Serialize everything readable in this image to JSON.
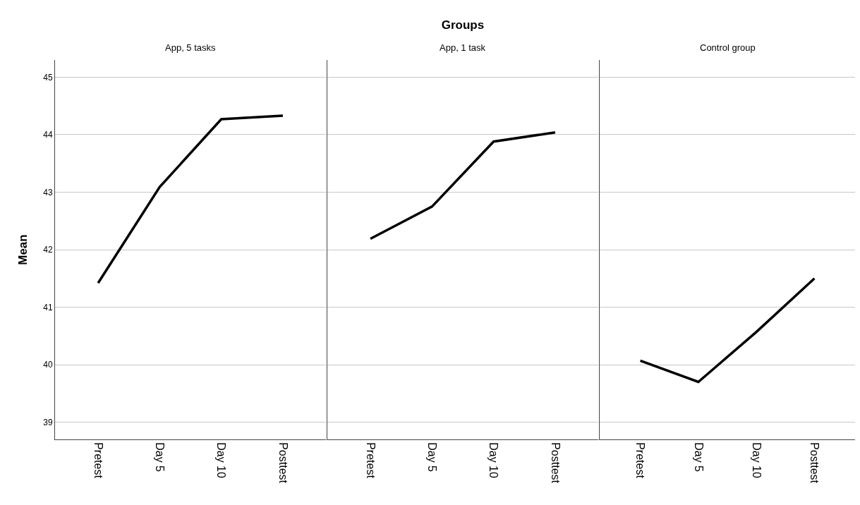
{
  "chart_data": [
    {
      "type": "line",
      "subtitle": "App, 5 tasks",
      "ylabel": "Mean",
      "categories": [
        "Pretest",
        "Day 5",
        "Day 10",
        "Posttest"
      ],
      "values": [
        41.42,
        43.09,
        44.27,
        44.33
      ],
      "color": "#000000",
      "ylim": [
        38.7,
        45.3
      ],
      "yticks": [
        39,
        40,
        41,
        42,
        43,
        44,
        45
      ],
      "grid": "y",
      "marker": "none",
      "line_style": "solid"
    },
    {
      "type": "line",
      "title": "Groups",
      "subtitle": "App, 1 task",
      "categories": [
        "Pretest",
        "Day 5",
        "Day 10",
        "Posttest"
      ],
      "values": [
        42.19,
        42.75,
        43.88,
        44.04
      ],
      "color": "#000000",
      "ylim": [
        38.7,
        45.3
      ],
      "yticks": [
        39,
        40,
        41,
        42,
        43,
        44,
        45
      ],
      "grid": "y",
      "marker": "none",
      "line_style": "solid",
      "tick_labels": "x"
    },
    {
      "type": "line",
      "subtitle": "Control group",
      "categories": [
        "Pretest",
        "Day 5",
        "Day 10",
        "Posttest"
      ],
      "values": [
        40.07,
        39.7,
        40.57,
        41.5
      ],
      "color": "#000000",
      "ylim": [
        38.7,
        45.3
      ],
      "yticks": [
        39,
        40,
        41,
        42,
        43,
        44,
        45
      ],
      "grid": "y",
      "marker": "none",
      "line_style": "solid",
      "tick_labels": "x"
    }
  ]
}
